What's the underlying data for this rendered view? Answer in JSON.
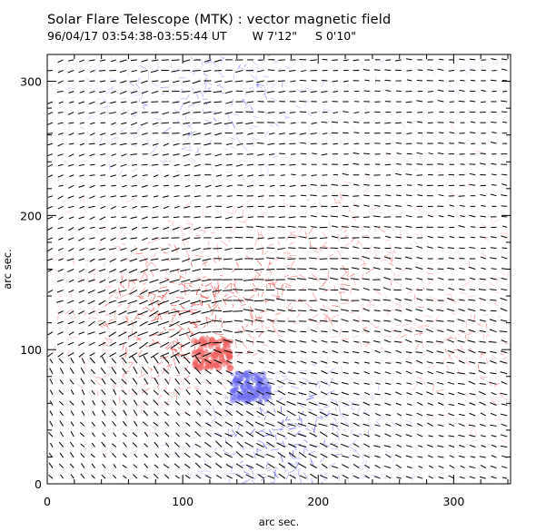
{
  "header": {
    "title": "Solar Flare Telescope (MTK) : vector magnetic field",
    "date": "96/04/17",
    "time_range": "03:54:38-03:55:44 UT",
    "longitude": "W 7'12\"",
    "latitude": "S 0'10\""
  },
  "chart_data": {
    "type": "heatmap",
    "title": "Solar Flare Telescope (MTK) : vector magnetic field",
    "xlabel": "arc sec.",
    "ylabel": "arc sec.",
    "xlim": [
      0,
      342
    ],
    "ylim": [
      0,
      320
    ],
    "x_ticks": [
      0,
      100,
      200,
      300
    ],
    "y_ticks": [
      0,
      100,
      200,
      300
    ],
    "overlay": "vector arrows (transverse field)",
    "colors": {
      "positive_polarity": "#f06060",
      "negative_polarity": "#6b6bf0",
      "vector": "#000000",
      "background": "#ffffff"
    },
    "regions": [
      {
        "polarity": "positive",
        "x": 122,
        "y": 97,
        "strength": 1.0
      },
      {
        "polarity": "positive",
        "x": 95,
        "y": 135,
        "strength": 0.55
      },
      {
        "polarity": "positive",
        "x": 200,
        "y": 150,
        "strength": 0.5
      },
      {
        "polarity": "positive",
        "x": 320,
        "y": 100,
        "strength": 0.35
      },
      {
        "polarity": "negative",
        "x": 150,
        "y": 72,
        "strength": 0.9
      },
      {
        "polarity": "negative",
        "x": 120,
        "y": 290,
        "strength": 0.45
      },
      {
        "polarity": "negative",
        "x": 180,
        "y": 30,
        "strength": 0.4
      }
    ]
  }
}
